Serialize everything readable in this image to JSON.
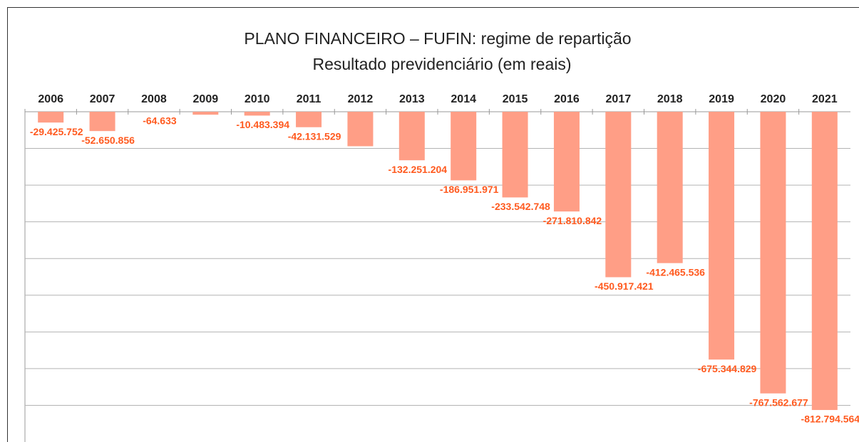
{
  "chart_data": {
    "type": "bar",
    "title": "PLANO FINANCEIRO – FUFIN: regime de repartição",
    "subtitle": "Resultado previdenciário (em reais)",
    "categories": [
      "2006",
      "2007",
      "2008",
      "2009",
      "2010",
      "2011",
      "2012",
      "2013",
      "2014",
      "2015",
      "2016",
      "2017",
      "2018",
      "2019",
      "2020",
      "2021"
    ],
    "values": [
      -29425752,
      -52650856,
      -64633,
      -8000000,
      -10483394,
      -42131529,
      -94000000,
      -132251204,
      -186951971,
      -233542748,
      -271810842,
      -450917421,
      -412465536,
      -675344829,
      -767562677,
      -812794564
    ],
    "value_labels": [
      "-29.425.752",
      "-52.650.856",
      "-64.633",
      null,
      "-10.483.394",
      "-42.131.529",
      null,
      "-132.251.204",
      "-186.951.971",
      "-233.542.748",
      "-271.810.842",
      "-450.917.421",
      "-412.465.536",
      "-675.344.829",
      "-767.562.677",
      "-812.794.564"
    ],
    "color": "#ff9e86",
    "label_color": "#ff5a1f",
    "ylim": [
      -900000000,
      0
    ],
    "yticks": [
      0,
      -100000000,
      -200000000,
      -300000000,
      -400000000,
      -500000000,
      -600000000,
      -700000000,
      -800000000
    ],
    "grid": true
  }
}
